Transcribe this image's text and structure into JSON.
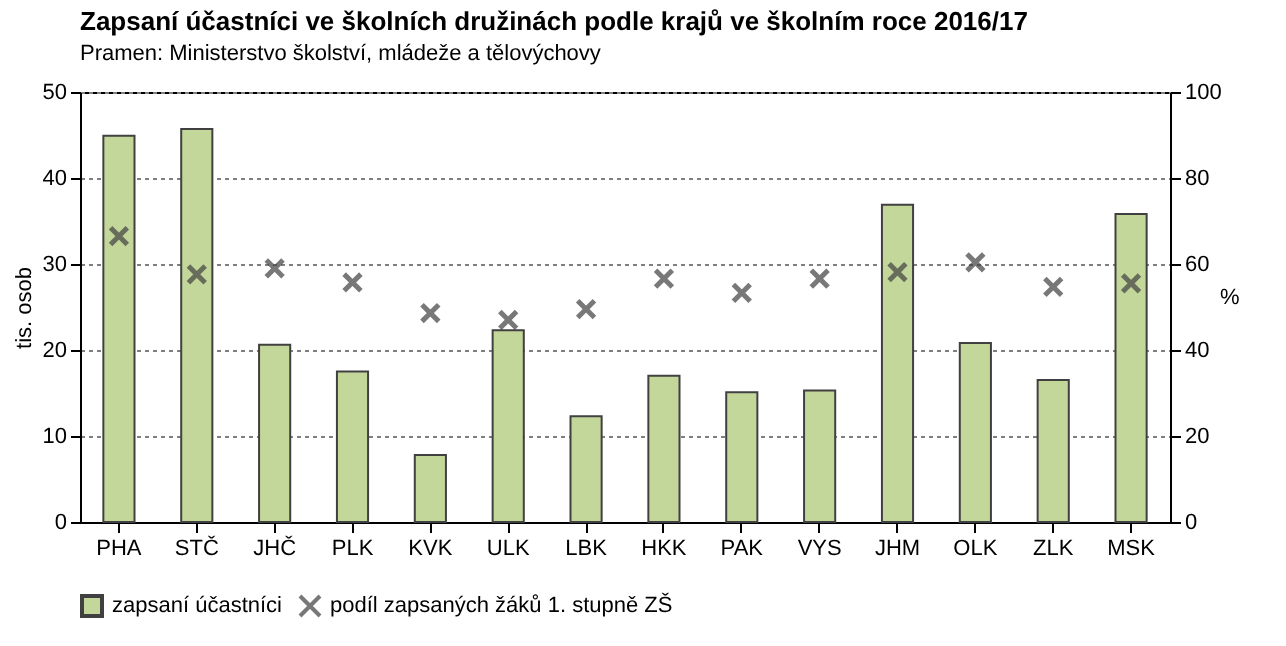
{
  "chart_data": {
    "type": "bar",
    "title": "Zapsaní účastníci ve školních družinách podle krajů ve školním roce 2016/17",
    "subtitle": "Pramen: Ministerstvo školství, mládeže a tělovýchovy",
    "categories": [
      "PHA",
      "STČ",
      "JHČ",
      "PLK",
      "KVK",
      "ULK",
      "LBK",
      "HKK",
      "PAK",
      "VYS",
      "JHM",
      "OLK",
      "ZLK",
      "MSK"
    ],
    "ylabel": "tis. osob",
    "y2label": "%",
    "ylim": [
      0,
      50
    ],
    "yticks": [
      0,
      10,
      20,
      30,
      40,
      50
    ],
    "y2lim": [
      0,
      100
    ],
    "y2ticks": [
      0,
      20,
      40,
      60,
      80,
      100
    ],
    "grid": "y",
    "legend": "bottom",
    "series": [
      {
        "name": "zapsaní účastníci",
        "color": "#c4d79b",
        "values": [
          44.9,
          45.7,
          20.6,
          17.5,
          7.8,
          22.3,
          12.3,
          17.0,
          15.1,
          15.3,
          36.9,
          20.8,
          16.5,
          35.8
        ]
      },
      {
        "name": "podíl zapsaných žáků 1. stupně ZŠ",
        "type": "scatter",
        "axis": "y2",
        "marker": "cross",
        "color": "#404040",
        "values": [
          66.5,
          57.6,
          59.0,
          55.7,
          48.6,
          47.0,
          49.5,
          56.6,
          53.3,
          56.6,
          58.1,
          60.4,
          54.7,
          55.5
        ]
      }
    ]
  }
}
